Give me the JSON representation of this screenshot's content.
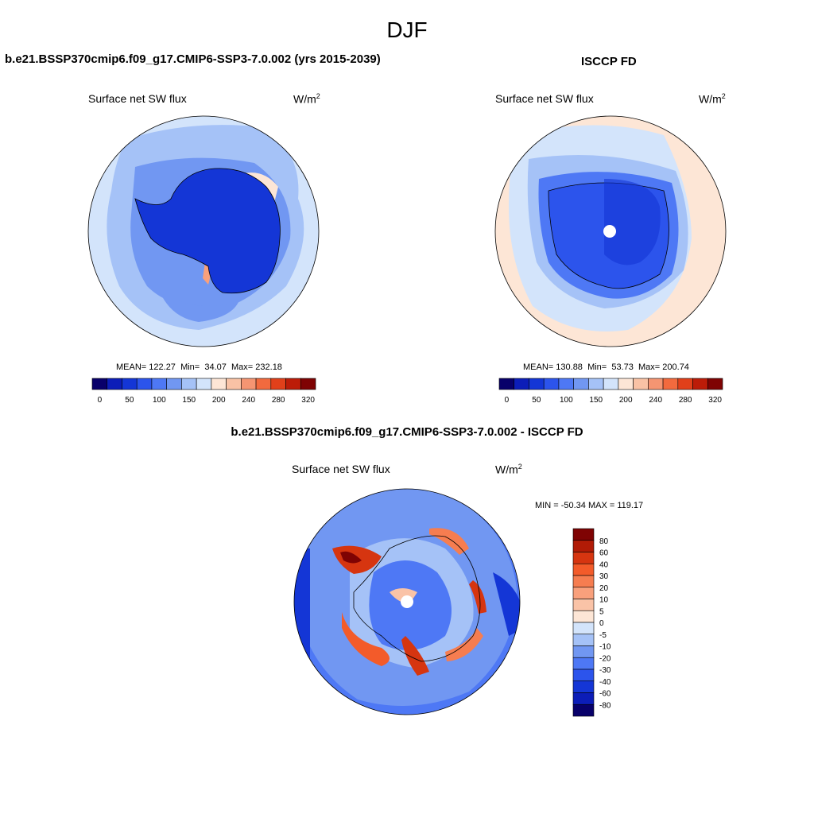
{
  "title": "DJF",
  "panels": {
    "model": {
      "title": "b.e21.BSSP370cmip6.f09_g17.CMIP6-SSP3-7.0.002 (yrs 2015-2039)",
      "variable": "Surface net SW flux",
      "units": "W/m",
      "units_exp": "2",
      "stats": {
        "mean_label": "MEAN=",
        "mean": "122.27",
        "min_label": "Min=",
        "min": "34.07",
        "max_label": "Max=",
        "max": "232.18"
      }
    },
    "obs": {
      "title": "ISCCP FD",
      "variable": "Surface net SW flux",
      "units": "W/m",
      "units_exp": "2",
      "stats": {
        "mean_label": "MEAN=",
        "mean": "130.88",
        "min_label": "Min=",
        "min": "53.73",
        "max_label": "Max=",
        "max": "200.74"
      }
    },
    "diff": {
      "title": "b.e21.BSSP370cmip6.f09_g17.CMIP6-SSP3-7.0.002 - ISCCP FD",
      "variable": "Surface net SW flux",
      "units": "W/m",
      "units_exp": "2",
      "range_text": "MIN = -50.34 MAX = 119.17"
    }
  },
  "colorbar_main": {
    "colors": [
      "#08006a",
      "#0c1db8",
      "#1436d6",
      "#2c54ec",
      "#4e78f5",
      "#7197f2",
      "#a5c2f7",
      "#d3e4fb",
      "#fde6d6",
      "#f9c2a5",
      "#f59572",
      "#f26a3e",
      "#e1401a",
      "#bc1c08",
      "#7f0303"
    ],
    "tick_labels": [
      "0",
      "50",
      "100",
      "150",
      "200",
      "240",
      "280",
      "320"
    ]
  },
  "colorbar_diff": {
    "colors": [
      "#7f0303",
      "#b11b06",
      "#d63510",
      "#f35b2a",
      "#f67d50",
      "#f9a07c",
      "#fac3a7",
      "#fde6d6",
      "#d3e4fb",
      "#a5c2f7",
      "#7197f2",
      "#4e78f5",
      "#2c54ec",
      "#1436d6",
      "#0c1db8",
      "#08006a"
    ],
    "tick_labels": [
      "80",
      "60",
      "40",
      "30",
      "20",
      "10",
      "5",
      "0",
      "-5",
      "-10",
      "-20",
      "-30",
      "-40",
      "-60",
      "-80"
    ]
  }
}
